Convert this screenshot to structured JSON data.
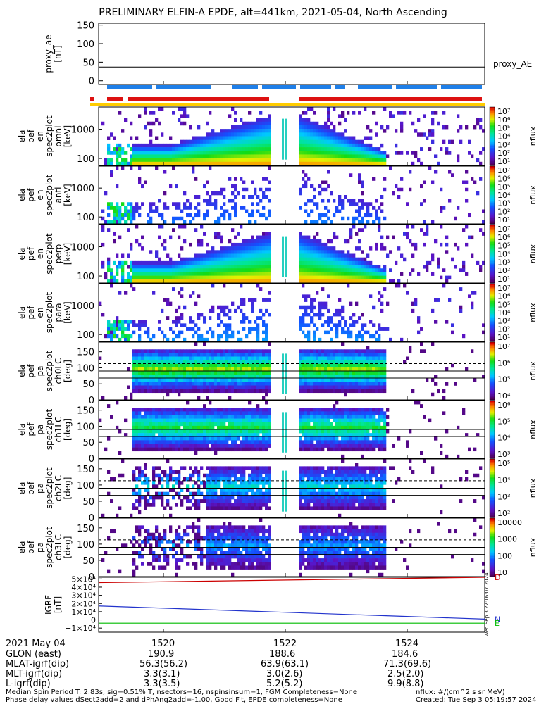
{
  "title": "PRELIMINARY ELFIN-A EPDE, alt=441km, 2021-05-04, North Ascending",
  "chart_data": [
    {
      "type": "line",
      "name": "proxy_ae",
      "ylabel": [
        "proxy_ae",
        "[nT]"
      ],
      "yticks": [
        "150",
        "100",
        "50",
        "0"
      ],
      "ylim": [
        -10,
        155
      ],
      "series": [
        {
          "name": "proxy_AE",
          "values": [
            37,
            37
          ]
        }
      ],
      "legend": "proxy_AE"
    },
    {
      "type": "heatmap",
      "name": "ela pef en spec2plot omni",
      "ylabel": [
        "ela",
        "pef",
        "en",
        "spec2plot",
        "omni",
        "[keV]"
      ],
      "yticks": [
        "1000",
        "100"
      ],
      "colorbar_label": "nflux",
      "colorbar_ticks": [
        "10⁷",
        "10⁶",
        "10⁵",
        "10⁴",
        "10³",
        "10²",
        "10¹"
      ]
    },
    {
      "type": "heatmap",
      "name": "ela pef en spec2plot anti",
      "ylabel": [
        "ela",
        "pef",
        "en",
        "spec2plot",
        "anti",
        "[keV]"
      ],
      "yticks": [
        "1000",
        "100"
      ],
      "colorbar_label": "nflux",
      "colorbar_ticks": [
        "10⁷",
        "10⁶",
        "10⁵",
        "10⁴",
        "10³",
        "10²",
        "10¹"
      ]
    },
    {
      "type": "heatmap",
      "name": "ela pef en spec2plot perp",
      "ylabel": [
        "ela",
        "pef",
        "en",
        "spec2plot",
        "perp",
        "[keV]"
      ],
      "yticks": [
        "1000",
        "100"
      ],
      "colorbar_label": "nflux",
      "colorbar_ticks": [
        "10⁷",
        "10⁶",
        "10⁵",
        "10⁴",
        "10³",
        "10²",
        "10¹"
      ]
    },
    {
      "type": "heatmap",
      "name": "ela pef en spec2plot para",
      "ylabel": [
        "ela",
        "pef",
        "en",
        "spec2plot",
        "para",
        "[keV]"
      ],
      "yticks": [
        "1000",
        "100"
      ],
      "colorbar_label": "nflux",
      "colorbar_ticks": [
        "10⁷",
        "10⁶",
        "10⁵",
        "10⁴",
        "10³",
        "10²",
        "10¹"
      ]
    },
    {
      "type": "heatmap",
      "name": "ela pef pa spec2plot ch0LC",
      "ylabel": [
        "ela",
        "pef",
        "pa",
        "spec2plot",
        "ch0LC",
        "[deg]"
      ],
      "yticks": [
        "150",
        "100",
        "50",
        "0"
      ],
      "colorbar_label": "nflux",
      "colorbar_ticks": [
        "10⁷",
        "10⁶",
        "10⁵",
        "10⁴"
      ]
    },
    {
      "type": "heatmap",
      "name": "ela pef pa spec2plot ch1LC",
      "ylabel": [
        "ela",
        "pef",
        "pa",
        "spec2plot",
        "ch1LC",
        "[deg]"
      ],
      "yticks": [
        "150",
        "100",
        "50",
        "0"
      ],
      "colorbar_label": "nflux",
      "colorbar_ticks": [
        "10⁶",
        "10⁵",
        "10⁴",
        "10³"
      ]
    },
    {
      "type": "heatmap",
      "name": "ela pef pa spec2plot ch2LC",
      "ylabel": [
        "ela",
        "pef",
        "pa",
        "spec2plot",
        "ch2LC",
        "[deg]"
      ],
      "yticks": [
        "150",
        "100",
        "50",
        "0"
      ],
      "colorbar_label": "nflux",
      "colorbar_ticks": [
        "10⁵",
        "10⁴",
        "10³",
        "10²"
      ]
    },
    {
      "type": "heatmap",
      "name": "ela pef pa spec2plot ch3LC",
      "ylabel": [
        "ela",
        "pef",
        "pa",
        "spec2plot",
        "ch3LC",
        "[deg]"
      ],
      "yticks": [
        "150",
        "100",
        "50",
        "0"
      ],
      "colorbar_label": "nflux",
      "colorbar_ticks": [
        "10000",
        "1000",
        "100",
        "10"
      ]
    },
    {
      "type": "line",
      "name": "IGRF",
      "ylabel": [
        "IGRF",
        "[nT]"
      ],
      "yticks": [
        "5×10⁴",
        "4×10⁴",
        "3×10⁴",
        "2×10⁴",
        "1×10⁴",
        "0",
        "−1×10⁴"
      ],
      "ylim": [
        -15000,
        52000
      ],
      "series": [
        {
          "name": "D",
          "color": "#cc0000",
          "values": [
            45500,
            52000
          ]
        },
        {
          "name": "N",
          "color": "#2233cc",
          "values": [
            17000,
            1000
          ]
        },
        {
          "name": "E",
          "color": "#00bb00",
          "values": [
            -4000,
            -4000
          ]
        }
      ],
      "side_text": "Wed Sep 3 22:16:07 2024"
    }
  ],
  "time_axis": {
    "label": "2021 May 04",
    "ticks": [
      "1520",
      "1522",
      "1524"
    ]
  },
  "ephemeris": [
    {
      "label": "GLON (east)",
      "values": [
        "190.9",
        "188.6",
        "184.6"
      ]
    },
    {
      "label": "MLAT-igrf(dip)",
      "values": [
        "56.3(56.2)",
        "63.9(63.1)",
        "71.3(69.6)"
      ]
    },
    {
      "label": "MLT-igrf(dip)",
      "values": [
        "3.3(3.1)",
        "3.0(2.6)",
        "2.5(2.0)"
      ]
    },
    {
      "label": "L-igrf(dip)",
      "values": [
        "3.3(3.5)",
        "5.2(5.2)",
        "9.9(8.8)"
      ]
    }
  ],
  "footer": {
    "line1": "Median Spin Period T: 2.83s, sig=0.51% T, nsectors=16, nspinsinsum=1, FGM Completeness=None",
    "line2": "Phase delay values dSect2add=2 and dPhAng2add=-1.00, Good Fit, EPDE completeness=None",
    "units": "nflux: #/(cm^2 s sr MeV)",
    "created": "Created: Tue Sep  3 05:19:57 2024"
  },
  "colors": {
    "science_bar_blue": "#1f7fe8",
    "science_bar_red": "#dd1111",
    "quality_bar": "#ffcc00"
  }
}
